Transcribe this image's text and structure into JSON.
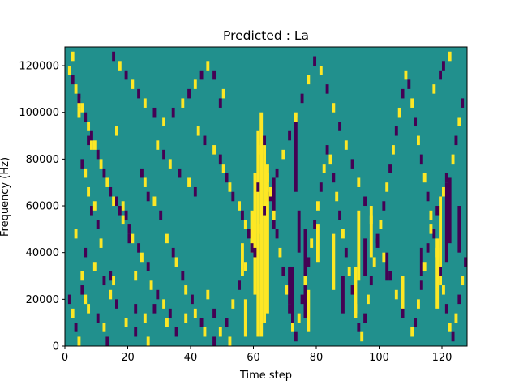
{
  "chart_data": {
    "type": "heatmap",
    "title": "Predicted : La",
    "xlabel": "Time step",
    "ylabel": "Frequency (Hz)",
    "xlim": [
      0,
      128
    ],
    "ylim": [
      0,
      128000
    ],
    "x_ticks": [
      0,
      20,
      40,
      60,
      80,
      100,
      120
    ],
    "y_ticks": [
      0,
      20000,
      40000,
      60000,
      80000,
      100000,
      120000
    ],
    "y_tick_labels": [
      "0",
      "20000",
      "40000",
      "60000",
      "80000",
      "100000",
      "120000"
    ],
    "colormap": {
      "background": "#21908d",
      "high": "#fde725",
      "low": "#440154"
    },
    "cells": [
      [
        2,
        124000,
        "high"
      ],
      [
        4,
        104000,
        "high"
      ],
      [
        4,
        100000,
        "high"
      ],
      [
        5,
        78000,
        "low"
      ],
      [
        6,
        74000,
        "high"
      ],
      [
        7,
        88000,
        "low"
      ],
      [
        8,
        86000,
        "high"
      ],
      [
        7,
        66000,
        "high"
      ],
      [
        8,
        58000,
        "low"
      ],
      [
        9,
        60000,
        "high"
      ],
      [
        10,
        52000,
        "low"
      ],
      [
        11,
        44000,
        "high"
      ],
      [
        5,
        30000,
        "high"
      ],
      [
        5,
        24000,
        "low"
      ],
      [
        6,
        20000,
        "high"
      ],
      [
        7,
        16000,
        "high"
      ],
      [
        10,
        12000,
        "low"
      ],
      [
        12,
        8000,
        "high"
      ],
      [
        14,
        30000,
        "low"
      ],
      [
        15,
        28000,
        "high"
      ],
      [
        16,
        92000,
        "high"
      ],
      [
        16,
        62000,
        "low"
      ],
      [
        18,
        60000,
        "high"
      ],
      [
        19,
        56000,
        "low"
      ],
      [
        20,
        46000,
        "low"
      ],
      [
        22,
        30000,
        "high"
      ],
      [
        22,
        16000,
        "low"
      ],
      [
        24,
        74000,
        "low"
      ],
      [
        25,
        70000,
        "high"
      ],
      [
        26,
        64000,
        "low"
      ],
      [
        28,
        62000,
        "high"
      ],
      [
        30,
        56000,
        "low"
      ],
      [
        32,
        46000,
        "high"
      ],
      [
        34,
        40000,
        "low"
      ],
      [
        35,
        36000,
        "high"
      ],
      [
        37,
        30000,
        "low"
      ],
      [
        38,
        24000,
        "high"
      ],
      [
        40,
        20000,
        "low"
      ],
      [
        41,
        14000,
        "high"
      ],
      [
        43,
        10000,
        "low"
      ],
      [
        44,
        6000,
        "high"
      ],
      [
        29,
        86000,
        "high"
      ],
      [
        31,
        82000,
        "low"
      ],
      [
        33,
        78000,
        "high"
      ],
      [
        36,
        74000,
        "low"
      ],
      [
        39,
        70000,
        "high"
      ],
      [
        41,
        66000,
        "low"
      ],
      [
        42,
        92000,
        "high"
      ],
      [
        44,
        88000,
        "low"
      ],
      [
        47,
        84000,
        "high"
      ],
      [
        49,
        80000,
        "low"
      ],
      [
        50,
        76000,
        "high"
      ],
      [
        51,
        72000,
        "low"
      ],
      [
        52,
        68000,
        "high"
      ],
      [
        53,
        64000,
        "low"
      ],
      [
        55,
        60000,
        "high"
      ],
      [
        56,
        56000,
        "low"
      ],
      [
        57,
        52000,
        "high"
      ],
      [
        58,
        48000,
        "low"
      ],
      [
        59,
        44000,
        "high"
      ],
      [
        60,
        40000,
        "low"
      ],
      [
        49,
        104000,
        "low"
      ],
      [
        50,
        108000,
        "high"
      ],
      [
        47,
        116000,
        "low"
      ],
      [
        45,
        120000,
        "high"
      ],
      [
        43,
        116000,
        "low"
      ],
      [
        41,
        112000,
        "high"
      ],
      [
        39,
        108000,
        "low"
      ],
      [
        37,
        104000,
        "high"
      ],
      [
        34,
        100000,
        "low"
      ],
      [
        31,
        96000,
        "high"
      ],
      [
        28,
        100000,
        "low"
      ],
      [
        25,
        104000,
        "high"
      ],
      [
        23,
        108000,
        "low"
      ],
      [
        21,
        112000,
        "high"
      ],
      [
        19,
        116000,
        "low"
      ],
      [
        17,
        120000,
        "high"
      ],
      [
        15,
        124000,
        "low"
      ],
      [
        61,
        68000,
        "low"
      ],
      [
        62,
        84000,
        "high"
      ],
      [
        63,
        88000,
        "low"
      ],
      [
        64,
        72000,
        "high"
      ],
      [
        65,
        64000,
        "low"
      ],
      [
        66,
        56000,
        "high"
      ],
      [
        67,
        48000,
        "low"
      ],
      [
        68,
        40000,
        "high"
      ],
      [
        69,
        32000,
        "low"
      ],
      [
        70,
        24000,
        "high"
      ],
      [
        71,
        16000,
        "low"
      ],
      [
        72,
        8000,
        "high"
      ],
      [
        73,
        4000,
        "low"
      ],
      [
        74,
        12000,
        "high"
      ],
      [
        75,
        20000,
        "low"
      ],
      [
        76,
        28000,
        "high"
      ],
      [
        77,
        36000,
        "low"
      ],
      [
        78,
        44000,
        "high"
      ],
      [
        79,
        52000,
        "low"
      ],
      [
        80,
        60000,
        "high"
      ],
      [
        81,
        68000,
        "low"
      ],
      [
        82,
        76000,
        "high"
      ],
      [
        83,
        84000,
        "low"
      ],
      [
        84,
        80000,
        "high"
      ],
      [
        85,
        72000,
        "low"
      ],
      [
        86,
        64000,
        "high"
      ],
      [
        87,
        56000,
        "low"
      ],
      [
        88,
        48000,
        "high"
      ],
      [
        89,
        40000,
        "low"
      ],
      [
        90,
        32000,
        "high"
      ],
      [
        91,
        24000,
        "low"
      ],
      [
        92,
        16000,
        "high"
      ],
      [
        93,
        8000,
        "low"
      ],
      [
        94,
        4000,
        "high"
      ],
      [
        95,
        12000,
        "low"
      ],
      [
        96,
        20000,
        "high"
      ],
      [
        97,
        28000,
        "low"
      ],
      [
        98,
        36000,
        "high"
      ],
      [
        99,
        44000,
        "low"
      ],
      [
        100,
        52000,
        "high"
      ],
      [
        101,
        60000,
        "low"
      ],
      [
        102,
        68000,
        "high"
      ],
      [
        103,
        76000,
        "low"
      ],
      [
        104,
        84000,
        "high"
      ],
      [
        105,
        92000,
        "low"
      ],
      [
        106,
        100000,
        "high"
      ],
      [
        107,
        108000,
        "low"
      ],
      [
        108,
        116000,
        "high"
      ],
      [
        109,
        112000,
        "low"
      ],
      [
        110,
        104000,
        "high"
      ],
      [
        111,
        96000,
        "low"
      ],
      [
        112,
        88000,
        "high"
      ],
      [
        113,
        80000,
        "low"
      ],
      [
        114,
        72000,
        "high"
      ],
      [
        115,
        64000,
        "low"
      ],
      [
        116,
        56000,
        "high"
      ],
      [
        117,
        48000,
        "low"
      ],
      [
        118,
        40000,
        "high"
      ],
      [
        119,
        32000,
        "low"
      ],
      [
        120,
        24000,
        "high"
      ],
      [
        121,
        16000,
        "low"
      ],
      [
        122,
        8000,
        "high"
      ],
      [
        123,
        4000,
        "low"
      ],
      [
        124,
        12000,
        "high"
      ],
      [
        125,
        20000,
        "low"
      ],
      [
        126,
        28000,
        "high"
      ],
      [
        127,
        36000,
        "low"
      ],
      [
        120,
        120000,
        "low"
      ],
      [
        122,
        124000,
        "high"
      ],
      [
        119,
        116000,
        "low"
      ],
      [
        117,
        110000,
        "high"
      ],
      [
        126,
        104000,
        "low"
      ],
      [
        125,
        96000,
        "high"
      ],
      [
        124,
        88000,
        "low"
      ],
      [
        123,
        80000,
        "high"
      ],
      [
        121,
        72000,
        "low"
      ],
      [
        120,
        66000,
        "high"
      ],
      [
        118,
        58000,
        "low"
      ],
      [
        116,
        50000,
        "high"
      ],
      [
        115,
        42000,
        "low"
      ],
      [
        114,
        34000,
        "high"
      ],
      [
        113,
        26000,
        "low"
      ],
      [
        112,
        18000,
        "high"
      ],
      [
        111,
        10000,
        "low"
      ],
      [
        110,
        6000,
        "high"
      ],
      [
        107,
        14000,
        "low"
      ],
      [
        105,
        22000,
        "high"
      ],
      [
        103,
        30000,
        "low"
      ],
      [
        101,
        38000,
        "high"
      ],
      [
        99,
        46000,
        "low"
      ],
      [
        97,
        54000,
        "high"
      ],
      [
        95,
        62000,
        "low"
      ],
      [
        93,
        70000,
        "high"
      ],
      [
        91,
        78000,
        "low"
      ],
      [
        89,
        86000,
        "high"
      ],
      [
        87,
        94000,
        "low"
      ],
      [
        85,
        102000,
        "high"
      ],
      [
        83,
        110000,
        "low"
      ],
      [
        81,
        118000,
        "high"
      ],
      [
        79,
        122000,
        "low"
      ],
      [
        77,
        114000,
        "high"
      ],
      [
        75,
        106000,
        "low"
      ],
      [
        73,
        98000,
        "high"
      ],
      [
        71,
        90000,
        "low"
      ],
      [
        69,
        82000,
        "high"
      ],
      [
        67,
        74000,
        "low"
      ],
      [
        65,
        66000,
        "high"
      ],
      [
        63,
        58000,
        "low"
      ],
      [
        61,
        50000,
        "high"
      ],
      [
        59,
        42000,
        "low"
      ],
      [
        57,
        34000,
        "high"
      ],
      [
        55,
        26000,
        "low"
      ],
      [
        53,
        18000,
        "high"
      ],
      [
        51,
        10000,
        "low"
      ],
      [
        49,
        6000,
        "high"
      ],
      [
        47,
        14000,
        "low"
      ],
      [
        45,
        22000,
        "high"
      ],
      [
        33,
        14000,
        "low"
      ],
      [
        31,
        18000,
        "high"
      ],
      [
        29,
        22000,
        "low"
      ],
      [
        27,
        26000,
        "high"
      ],
      [
        26,
        34000,
        "low"
      ],
      [
        24,
        38000,
        "high"
      ],
      [
        23,
        42000,
        "low"
      ],
      [
        21,
        46000,
        "high"
      ],
      [
        20,
        50000,
        "low"
      ],
      [
        18,
        54000,
        "high"
      ],
      [
        17,
        58000,
        "low"
      ],
      [
        15,
        62000,
        "high"
      ],
      [
        14,
        66000,
        "low"
      ],
      [
        13,
        70000,
        "high"
      ],
      [
        12,
        74000,
        "low"
      ],
      [
        11,
        78000,
        "high"
      ],
      [
        10,
        82000,
        "low"
      ],
      [
        9,
        86000,
        "high"
      ],
      [
        8,
        90000,
        "low"
      ],
      [
        7,
        94000,
        "high"
      ],
      [
        6,
        98000,
        "low"
      ],
      [
        5,
        102000,
        "high"
      ],
      [
        4,
        106000,
        "low"
      ],
      [
        3,
        110000,
        "high"
      ],
      [
        2,
        114000,
        "low"
      ],
      [
        1,
        118000,
        "high"
      ],
      [
        3,
        48000,
        "high"
      ],
      [
        6,
        40000,
        "low"
      ],
      [
        9,
        34000,
        "high"
      ],
      [
        12,
        28000,
        "low"
      ],
      [
        14,
        22000,
        "high"
      ],
      [
        16,
        18000,
        "low"
      ],
      [
        19,
        10000,
        "high"
      ],
      [
        22,
        6000,
        "low"
      ],
      [
        25,
        12000,
        "high"
      ],
      [
        28,
        16000,
        "low"
      ],
      [
        32,
        10000,
        "high"
      ],
      [
        35,
        6000,
        "low"
      ],
      [
        38,
        12000,
        "high"
      ],
      [
        1,
        20000,
        "low"
      ],
      [
        2,
        14000,
        "high"
      ],
      [
        3,
        8000,
        "low"
      ],
      [
        4,
        2000,
        "high"
      ],
      [
        13,
        2000,
        "low"
      ],
      [
        26,
        2000,
        "high"
      ],
      [
        47,
        2000,
        "low"
      ],
      [
        52,
        2000,
        "high"
      ]
    ],
    "columns": [
      {
        "x": 61,
        "y0": 4000,
        "y1": 92000,
        "value": "high"
      },
      {
        "x": 62,
        "y0": 4000,
        "y1": 100000,
        "value": "high"
      },
      {
        "x": 63,
        "y0": 10000,
        "y1": 88000,
        "value": "high"
      },
      {
        "x": 64,
        "y0": 14000,
        "y1": 78000,
        "value": "high"
      },
      {
        "x": 60,
        "y0": 22000,
        "y1": 74000,
        "value": "high"
      },
      {
        "x": 59,
        "y0": 40000,
        "y1": 58000,
        "value": "high"
      },
      {
        "x": 66,
        "y0": 50000,
        "y1": 72000,
        "value": "low"
      },
      {
        "x": 71,
        "y0": 18000,
        "y1": 34000,
        "value": "low"
      },
      {
        "x": 72,
        "y0": 10000,
        "y1": 34000,
        "value": "low"
      },
      {
        "x": 73,
        "y0": 66000,
        "y1": 98000,
        "value": "low"
      },
      {
        "x": 76,
        "y0": 12000,
        "y1": 50000,
        "value": "low"
      },
      {
        "x": 77,
        "y0": 6000,
        "y1": 24000,
        "value": "high"
      },
      {
        "x": 88,
        "y0": 14000,
        "y1": 30000,
        "value": "low"
      },
      {
        "x": 92,
        "y0": 12000,
        "y1": 34000,
        "value": "high"
      },
      {
        "x": 93,
        "y0": 28000,
        "y1": 58000,
        "value": "high"
      },
      {
        "x": 118,
        "y0": 16000,
        "y1": 46000,
        "value": "high"
      },
      {
        "x": 119,
        "y0": 26000,
        "y1": 64000,
        "value": "high"
      },
      {
        "x": 121,
        "y0": 36000,
        "y1": 70000,
        "value": "low"
      },
      {
        "x": 122,
        "y0": 44000,
        "y1": 72000,
        "value": "low"
      },
      {
        "x": 125,
        "y0": 40000,
        "y1": 60000,
        "value": "low"
      },
      {
        "x": 74,
        "y0": 40000,
        "y1": 58000,
        "value": "low"
      },
      {
        "x": 80,
        "y0": 36000,
        "y1": 52000,
        "value": "high"
      },
      {
        "x": 85,
        "y0": 24000,
        "y1": 48000,
        "value": "high"
      },
      {
        "x": 95,
        "y0": 30000,
        "y1": 46000,
        "value": "low"
      },
      {
        "x": 97,
        "y0": 38000,
        "y1": 60000,
        "value": "high"
      },
      {
        "x": 102,
        "y0": 28000,
        "y1": 40000,
        "value": "low"
      },
      {
        "x": 107,
        "y0": 14000,
        "y1": 30000,
        "value": "high"
      },
      {
        "x": 113,
        "y0": 30000,
        "y1": 42000,
        "value": "low"
      },
      {
        "x": 57,
        "y0": 4000,
        "y1": 20000,
        "value": "high"
      },
      {
        "x": 56,
        "y0": 30000,
        "y1": 44000,
        "value": "high"
      }
    ]
  }
}
